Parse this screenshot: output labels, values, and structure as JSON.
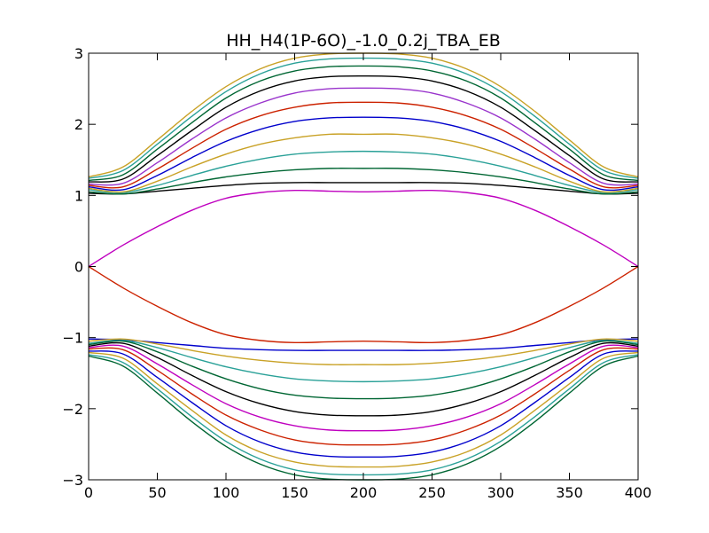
{
  "chart_data": {
    "type": "line",
    "title": "HH_H4(1P-6O)_-1.0_0.2j_TBA_EB",
    "xlabel": "",
    "ylabel": "",
    "xlim": [
      0,
      400
    ],
    "ylim": [
      -3,
      3
    ],
    "xticks": [
      "0",
      "50",
      "100",
      "150",
      "200",
      "250",
      "300",
      "350",
      "400"
    ],
    "yticks": [
      "3",
      "2",
      "1",
      "0",
      "−1",
      "−2",
      "−3"
    ],
    "grid": false,
    "legend": "none",
    "x": [
      0,
      25,
      50,
      75,
      100,
      125,
      150,
      175,
      200,
      225,
      250,
      275,
      300,
      325,
      350,
      375,
      400
    ],
    "series": [
      {
        "color": "#bf00bf",
        "values": [
          0.0,
          0.3,
          0.56,
          0.79,
          0.96,
          1.04,
          1.07,
          1.06,
          1.05,
          1.06,
          1.07,
          1.04,
          0.96,
          0.79,
          0.56,
          0.3,
          0.0
        ]
      },
      {
        "color": "#000000",
        "values": [
          1.03,
          1.02,
          1.06,
          1.1,
          1.14,
          1.17,
          1.18,
          1.18,
          1.18,
          1.18,
          1.18,
          1.17,
          1.14,
          1.1,
          1.06,
          1.02,
          1.03
        ]
      },
      {
        "color": "#006633",
        "values": [
          1.05,
          1.02,
          1.09,
          1.18,
          1.26,
          1.32,
          1.36,
          1.38,
          1.38,
          1.38,
          1.36,
          1.32,
          1.26,
          1.18,
          1.09,
          1.02,
          1.05
        ]
      },
      {
        "color": "#2aa198",
        "values": [
          1.08,
          1.04,
          1.14,
          1.28,
          1.41,
          1.51,
          1.58,
          1.61,
          1.62,
          1.61,
          1.58,
          1.51,
          1.41,
          1.28,
          1.14,
          1.04,
          1.08
        ]
      },
      {
        "color": "#c9a227",
        "values": [
          1.1,
          1.05,
          1.2,
          1.4,
          1.58,
          1.72,
          1.81,
          1.86,
          1.86,
          1.86,
          1.81,
          1.72,
          1.58,
          1.4,
          1.2,
          1.05,
          1.1
        ]
      },
      {
        "color": "#0000cc",
        "values": [
          1.12,
          1.08,
          1.28,
          1.53,
          1.76,
          1.93,
          2.04,
          2.09,
          2.1,
          2.09,
          2.04,
          1.93,
          1.76,
          1.53,
          1.28,
          1.08,
          1.12
        ]
      },
      {
        "color": "#cc2200",
        "values": [
          1.14,
          1.12,
          1.37,
          1.66,
          1.93,
          2.12,
          2.24,
          2.3,
          2.31,
          2.3,
          2.24,
          2.12,
          1.93,
          1.66,
          1.37,
          1.12,
          1.14
        ]
      },
      {
        "color": "#9933cc",
        "values": [
          1.16,
          1.17,
          1.46,
          1.79,
          2.09,
          2.3,
          2.44,
          2.5,
          2.51,
          2.5,
          2.44,
          2.3,
          2.09,
          1.79,
          1.46,
          1.17,
          1.16
        ]
      },
      {
        "color": "#000000",
        "values": [
          1.19,
          1.23,
          1.56,
          1.91,
          2.24,
          2.47,
          2.61,
          2.67,
          2.68,
          2.67,
          2.61,
          2.47,
          2.24,
          1.91,
          1.56,
          1.23,
          1.19
        ]
      },
      {
        "color": "#006633",
        "values": [
          1.21,
          1.29,
          1.65,
          2.02,
          2.37,
          2.61,
          2.75,
          2.81,
          2.82,
          2.81,
          2.75,
          2.61,
          2.37,
          2.02,
          1.65,
          1.29,
          1.21
        ]
      },
      {
        "color": "#2aa198",
        "values": [
          1.24,
          1.35,
          1.72,
          2.11,
          2.46,
          2.71,
          2.86,
          2.92,
          2.93,
          2.92,
          2.86,
          2.71,
          2.46,
          2.11,
          1.72,
          1.35,
          1.24
        ]
      },
      {
        "color": "#c9a227",
        "values": [
          1.26,
          1.4,
          1.78,
          2.18,
          2.53,
          2.78,
          2.93,
          2.99,
          3.0,
          2.99,
          2.93,
          2.78,
          2.53,
          2.18,
          1.78,
          1.4,
          1.26
        ]
      },
      {
        "color": "#cc2200",
        "values": [
          0.0,
          -0.3,
          -0.56,
          -0.79,
          -0.96,
          -1.04,
          -1.07,
          -1.06,
          -1.05,
          -1.06,
          -1.07,
          -1.04,
          -0.96,
          -0.79,
          -0.56,
          -0.3,
          0.0
        ]
      },
      {
        "color": "#0000cc",
        "values": [
          -1.02,
          -1.03,
          -1.07,
          -1.11,
          -1.15,
          -1.17,
          -1.18,
          -1.18,
          -1.18,
          -1.18,
          -1.18,
          -1.17,
          -1.15,
          -1.11,
          -1.07,
          -1.03,
          -1.02
        ]
      },
      {
        "color": "#c9a227",
        "values": [
          -1.05,
          -1.02,
          -1.09,
          -1.18,
          -1.26,
          -1.32,
          -1.36,
          -1.38,
          -1.38,
          -1.38,
          -1.36,
          -1.32,
          -1.26,
          -1.18,
          -1.09,
          -1.02,
          -1.05
        ]
      },
      {
        "color": "#2aa198",
        "values": [
          -1.08,
          -1.04,
          -1.14,
          -1.28,
          -1.41,
          -1.51,
          -1.58,
          -1.61,
          -1.62,
          -1.61,
          -1.58,
          -1.51,
          -1.41,
          -1.28,
          -1.14,
          -1.04,
          -1.08
        ]
      },
      {
        "color": "#006633",
        "values": [
          -1.1,
          -1.05,
          -1.2,
          -1.4,
          -1.58,
          -1.72,
          -1.81,
          -1.85,
          -1.86,
          -1.85,
          -1.81,
          -1.72,
          -1.58,
          -1.4,
          -1.2,
          -1.05,
          -1.1
        ]
      },
      {
        "color": "#000000",
        "values": [
          -1.12,
          -1.08,
          -1.28,
          -1.53,
          -1.76,
          -1.93,
          -2.04,
          -2.09,
          -2.1,
          -2.09,
          -2.04,
          -1.93,
          -1.76,
          -1.53,
          -1.28,
          -1.08,
          -1.12
        ]
      },
      {
        "color": "#bf00bf",
        "values": [
          -1.14,
          -1.12,
          -1.37,
          -1.66,
          -1.93,
          -2.12,
          -2.24,
          -2.3,
          -2.31,
          -2.3,
          -2.24,
          -2.12,
          -1.93,
          -1.66,
          -1.37,
          -1.12,
          -1.14
        ]
      },
      {
        "color": "#cc2200",
        "values": [
          -1.16,
          -1.17,
          -1.46,
          -1.79,
          -2.09,
          -2.3,
          -2.44,
          -2.5,
          -2.51,
          -2.5,
          -2.44,
          -2.3,
          -2.09,
          -1.79,
          -1.46,
          -1.17,
          -1.16
        ]
      },
      {
        "color": "#0000cc",
        "values": [
          -1.19,
          -1.23,
          -1.56,
          -1.91,
          -2.24,
          -2.47,
          -2.61,
          -2.67,
          -2.68,
          -2.67,
          -2.61,
          -2.47,
          -2.24,
          -1.91,
          -1.56,
          -1.23,
          -1.19
        ]
      },
      {
        "color": "#c9a227",
        "values": [
          -1.21,
          -1.29,
          -1.65,
          -2.02,
          -2.37,
          -2.61,
          -2.75,
          -2.81,
          -2.82,
          -2.81,
          -2.75,
          -2.61,
          -2.37,
          -2.02,
          -1.65,
          -1.29,
          -1.21
        ]
      },
      {
        "color": "#2aa198",
        "values": [
          -1.24,
          -1.35,
          -1.72,
          -2.11,
          -2.46,
          -2.71,
          -2.86,
          -2.92,
          -2.93,
          -2.92,
          -2.86,
          -2.71,
          -2.46,
          -2.11,
          -1.72,
          -1.35,
          -1.24
        ]
      },
      {
        "color": "#006633",
        "values": [
          -1.26,
          -1.4,
          -1.78,
          -2.18,
          -2.53,
          -2.78,
          -2.93,
          -2.99,
          -3.0,
          -2.99,
          -2.93,
          -2.78,
          -2.53,
          -2.18,
          -1.78,
          -1.4,
          -1.26
        ]
      }
    ]
  }
}
